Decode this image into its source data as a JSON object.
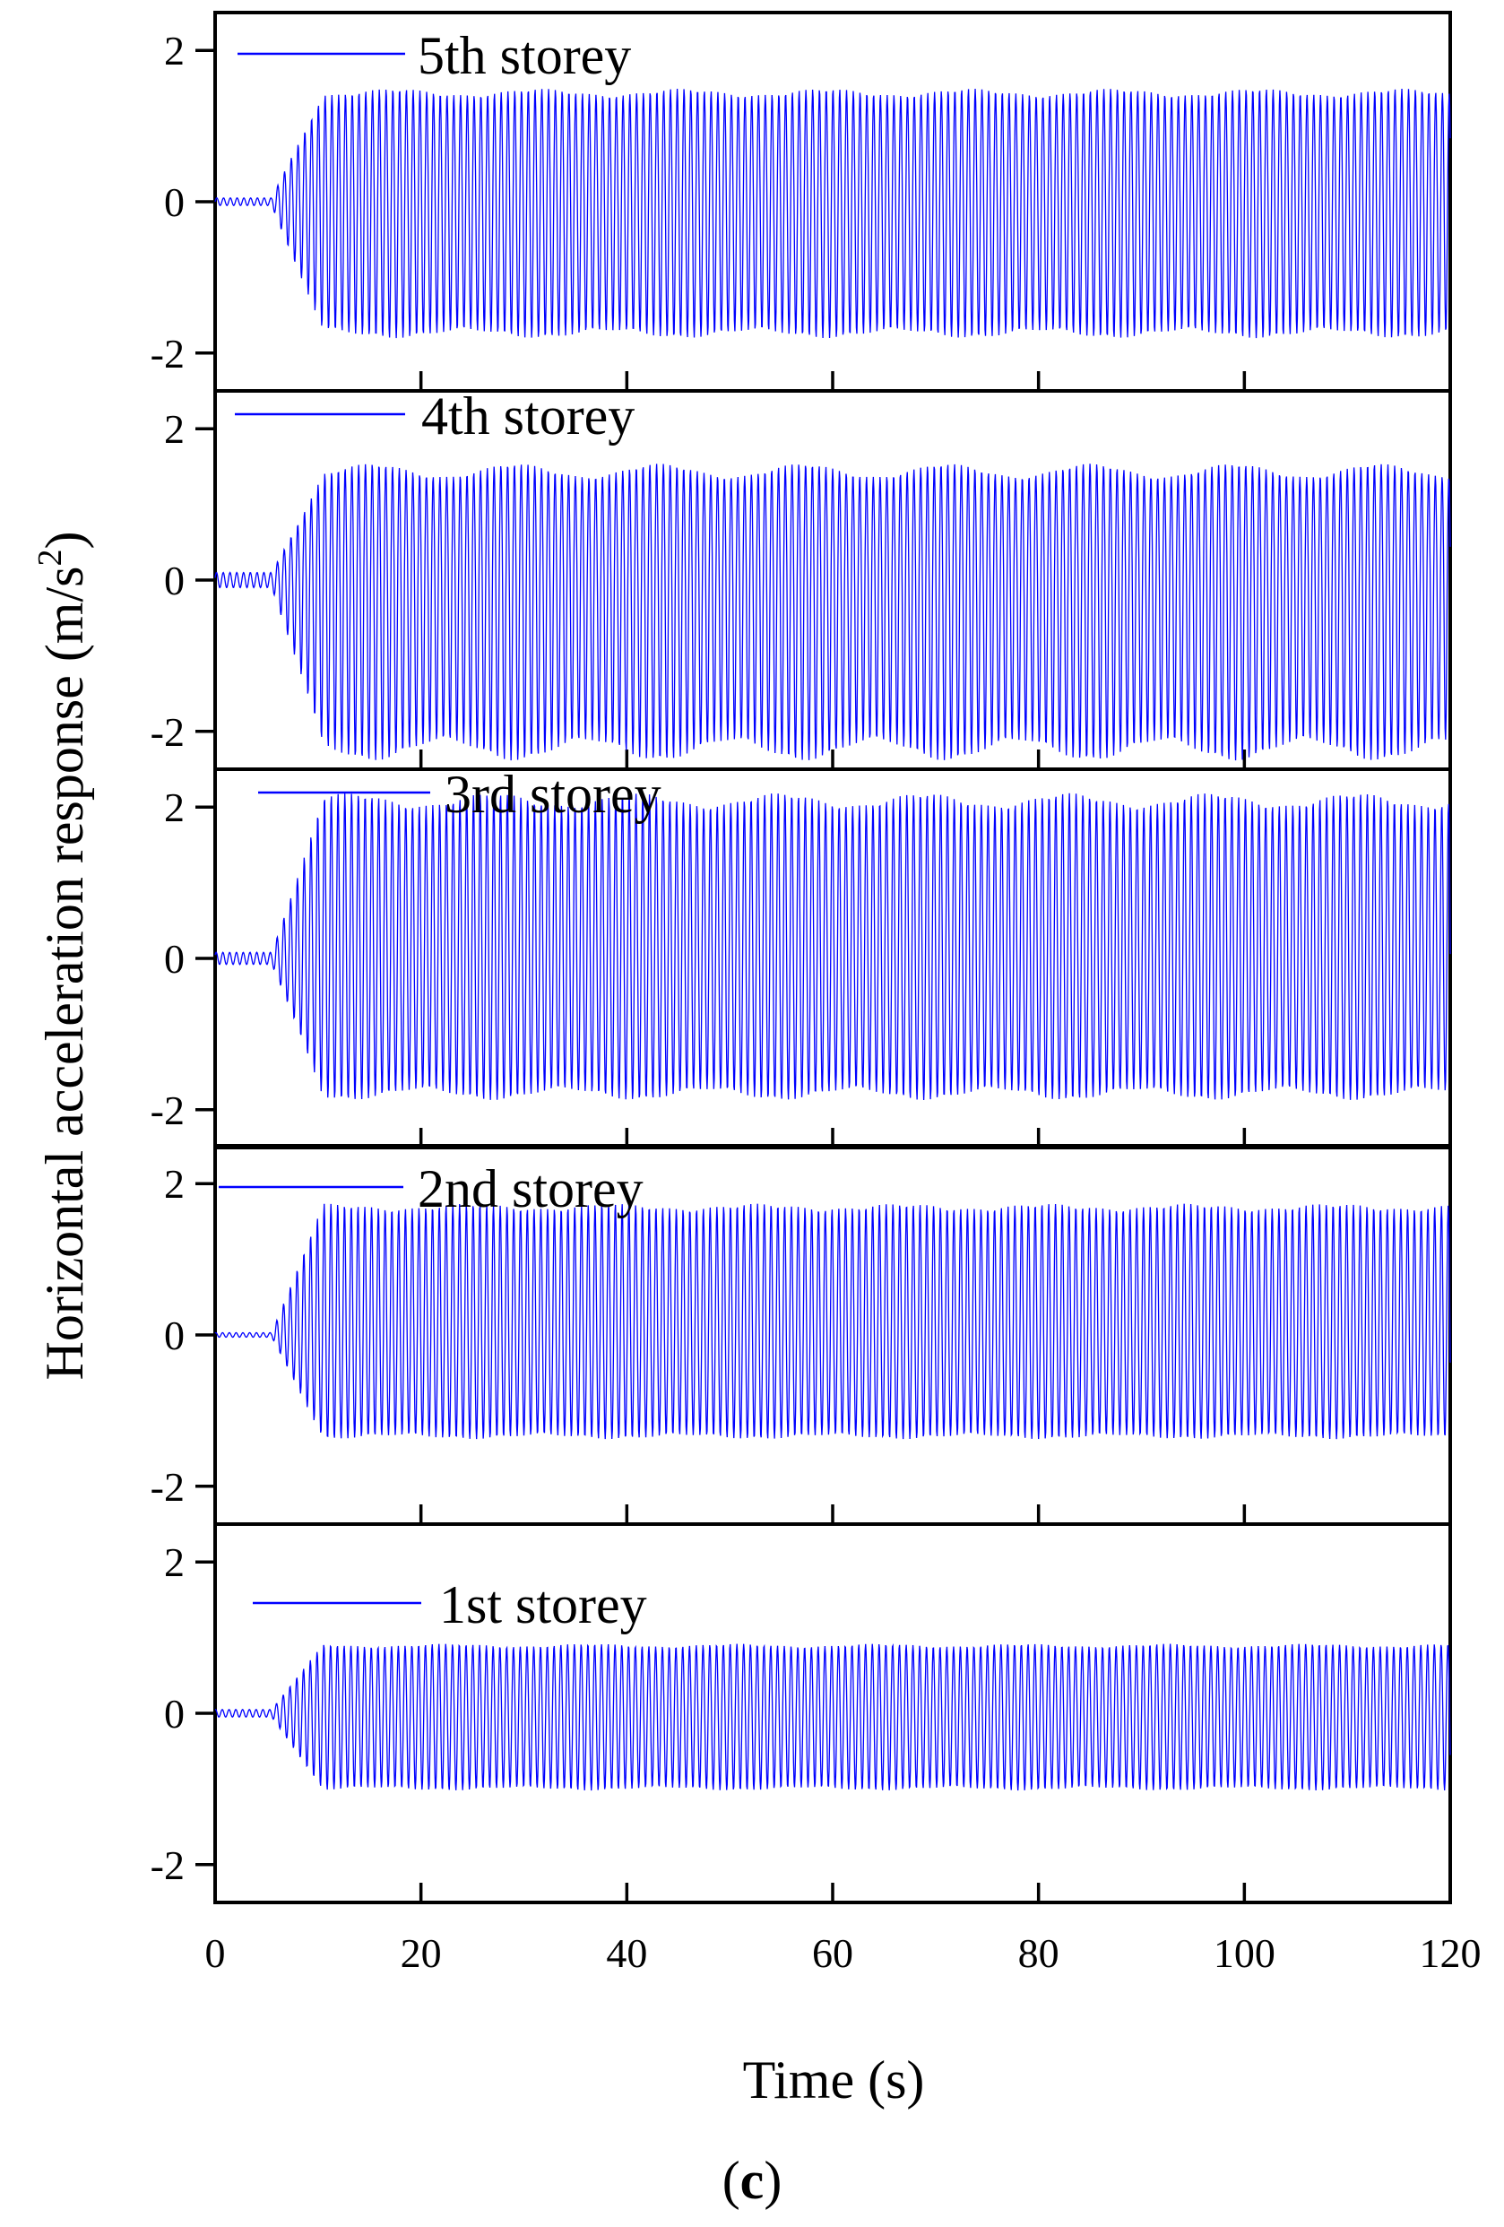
{
  "figure_label": {
    "open": "(",
    "letter": "c",
    "close": ")"
  },
  "chart_data": {
    "type": "line",
    "xlabel": "Time (s)",
    "ylabel": {
      "main": "Horizontal acceleration response (m/s",
      "superscript": "2",
      "close": ")"
    },
    "xlim": [
      0,
      120
    ],
    "x_ticks": [
      0,
      20,
      40,
      60,
      80,
      100,
      120
    ],
    "x_tick_labels": [
      "0",
      "20",
      "40",
      "60",
      "80",
      "100",
      "120"
    ],
    "ylim": [
      -2.5,
      2.5
    ],
    "y_ticks": [
      -2,
      0,
      2
    ],
    "y_tick_labels": [
      "-2",
      "0",
      "2"
    ],
    "series_color": "#0000ff",
    "series": [
      {
        "name": "5th storey",
        "legend": "5th storey",
        "onset_s": 5.5,
        "ramp_end_s": 10.5,
        "pre_amp": 0.05,
        "ymax": 1.45,
        "ymin": -1.75,
        "envelope_ripple": 0.03
      },
      {
        "name": "4th storey",
        "legend": "4th storey",
        "onset_s": 5.5,
        "ramp_end_s": 10.5,
        "pre_amp": 0.1,
        "ymax": 1.45,
        "ymin": -2.25,
        "envelope_ripple": 0.06
      },
      {
        "name": "3rd storey",
        "legend": "3rd storey",
        "onset_s": 5.5,
        "ramp_end_s": 10.5,
        "pre_amp": 0.08,
        "ymax": 2.1,
        "ymin": -1.8,
        "envelope_ripple": 0.04
      },
      {
        "name": "2nd storey",
        "legend": "2nd storey",
        "onset_s": 5.5,
        "ramp_end_s": 10.5,
        "pre_amp": 0.03,
        "ymax": 1.7,
        "ymin": -1.35,
        "envelope_ripple": 0.02
      },
      {
        "name": "1st storey",
        "legend": "1st storey",
        "onset_s": 5.5,
        "ramp_end_s": 10.5,
        "pre_amp": 0.05,
        "ymax": 0.9,
        "ymin": -1.0,
        "envelope_ripple": 0.02
      }
    ]
  }
}
